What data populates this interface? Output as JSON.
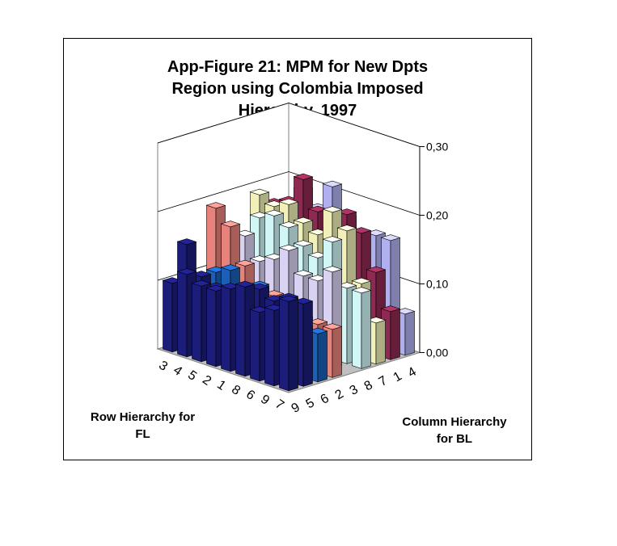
{
  "chart_data": {
    "type": "bar",
    "subtype": "3d-column",
    "title_lines": [
      "App-Figure 21: MPM for New Dpts",
      "Region using Colombia Imposed",
      "Hierarchy, 1997"
    ],
    "row_axis_label": [
      "Row Hierarchy for",
      "FL"
    ],
    "column_axis_label": [
      "Column Hierarchy",
      "for BL"
    ],
    "row_categories": [
      "3",
      "4",
      "5",
      "2",
      "1",
      "8",
      "6",
      "9",
      "7"
    ],
    "column_categories": [
      "9",
      "5",
      "6",
      "2",
      "3",
      "8",
      "7",
      "1",
      "4"
    ],
    "z_ticks": [
      "0,00",
      "0,10",
      "0,20",
      "0,30"
    ],
    "zlim": [
      0,
      0.3
    ],
    "grid": true,
    "values": [
      [
        0.13,
        0.12,
        0.07,
        0.07,
        0.0,
        0.11,
        0.06,
        0.07,
        0.06
      ],
      [
        0.11,
        0.12,
        0.07,
        0.07,
        0.14,
        0.11,
        0.11,
        0.12,
        0.16
      ],
      [
        0.1,
        0.11,
        0.08,
        0.07,
        0.12,
        0.17,
        0.18,
        0.17,
        0.16
      ],
      [
        0.13,
        0.12,
        0.09,
        0.07,
        0.12,
        0.14,
        0.2,
        0.19,
        0.15
      ],
      [
        0.12,
        0.1,
        0.11,
        0.09,
        0.15,
        0.15,
        0.16,
        0.16,
        0.17
      ],
      [
        0.11,
        0.08,
        0.1,
        0.09,
        0.13,
        0.17,
        0.17,
        0.18,
        0.21
      ],
      [
        0.11,
        0.1,
        0.12,
        0.12,
        0.12,
        0.18,
        0.19,
        0.22,
        0.17
      ],
      [
        0.12,
        0.11,
        0.11,
        0.17,
        0.15,
        0.17,
        0.18,
        0.18,
        0.19
      ],
      [
        0.1,
        0.15,
        0.09,
        0.19,
        0.09,
        0.13,
        0.19,
        0.17,
        0.12
      ]
    ],
    "column_colors": [
      "#1c1c7a",
      "#1c1c7a",
      "#1b5fb8",
      "#e8827c",
      "#d9d2f2",
      "#d0f6f6",
      "#f0f0b8",
      "#8e2a52",
      "#b0b0f0"
    ]
  }
}
